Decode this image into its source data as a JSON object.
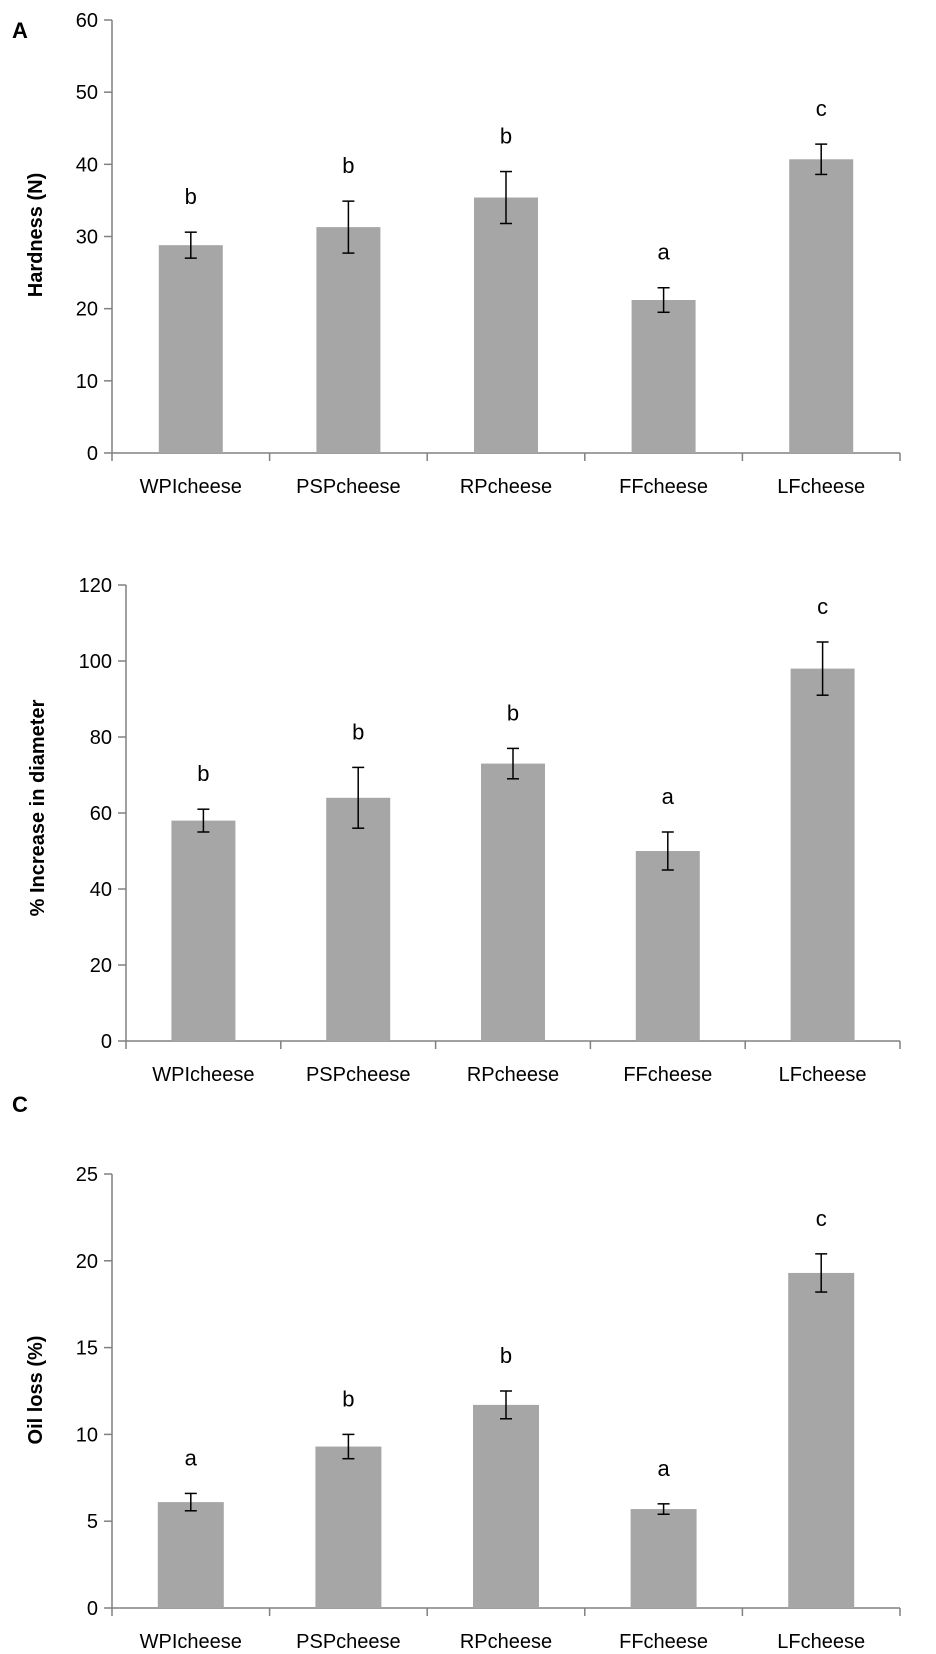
{
  "colors": {
    "bar": "#a6a6a6",
    "axis": "#808080",
    "errorbar": "#000000"
  },
  "chart_data": [
    {
      "type": "bar",
      "panel_label": "A",
      "ylabel": "Hardness (N)",
      "xlabel": "",
      "ylim": [
        0,
        60
      ],
      "yticks": [
        0,
        10,
        20,
        30,
        40,
        50,
        60
      ],
      "categories": [
        "WPIcheese",
        "PSPcheese",
        "RPcheese",
        "FFcheese",
        "LFcheese"
      ],
      "values": [
        28.8,
        31.3,
        35.4,
        21.2,
        40.7
      ],
      "errors": [
        1.8,
        3.6,
        3.6,
        1.7,
        2.1
      ],
      "significance": [
        "b",
        "b",
        "b",
        "a",
        "c"
      ]
    },
    {
      "type": "bar",
      "panel_label": "",
      "ylabel": "% Increase in diameter",
      "xlabel": "",
      "ylim": [
        0,
        120
      ],
      "yticks": [
        0,
        20,
        40,
        60,
        80,
        100,
        120
      ],
      "categories": [
        "WPIcheese",
        "PSPcheese",
        "RPcheese",
        "FFcheese",
        "LFcheese"
      ],
      "values": [
        58,
        64,
        73,
        50,
        98
      ],
      "errors": [
        3,
        8,
        4,
        5,
        7
      ],
      "significance": [
        "b",
        "b",
        "b",
        "a",
        "c"
      ]
    },
    {
      "type": "bar",
      "panel_label": "C",
      "ylabel": "Oil loss (%)",
      "xlabel": "",
      "ylim": [
        0,
        25
      ],
      "yticks": [
        0,
        5,
        10,
        15,
        20,
        25
      ],
      "categories": [
        "WPIcheese",
        "PSPcheese",
        "RPcheese",
        "FFcheese",
        "LFcheese"
      ],
      "values": [
        6.1,
        9.3,
        11.7,
        5.7,
        19.3
      ],
      "errors": [
        0.5,
        0.7,
        0.8,
        0.3,
        1.1
      ],
      "significance": [
        "a",
        "b",
        "b",
        "a",
        "c"
      ]
    }
  ]
}
